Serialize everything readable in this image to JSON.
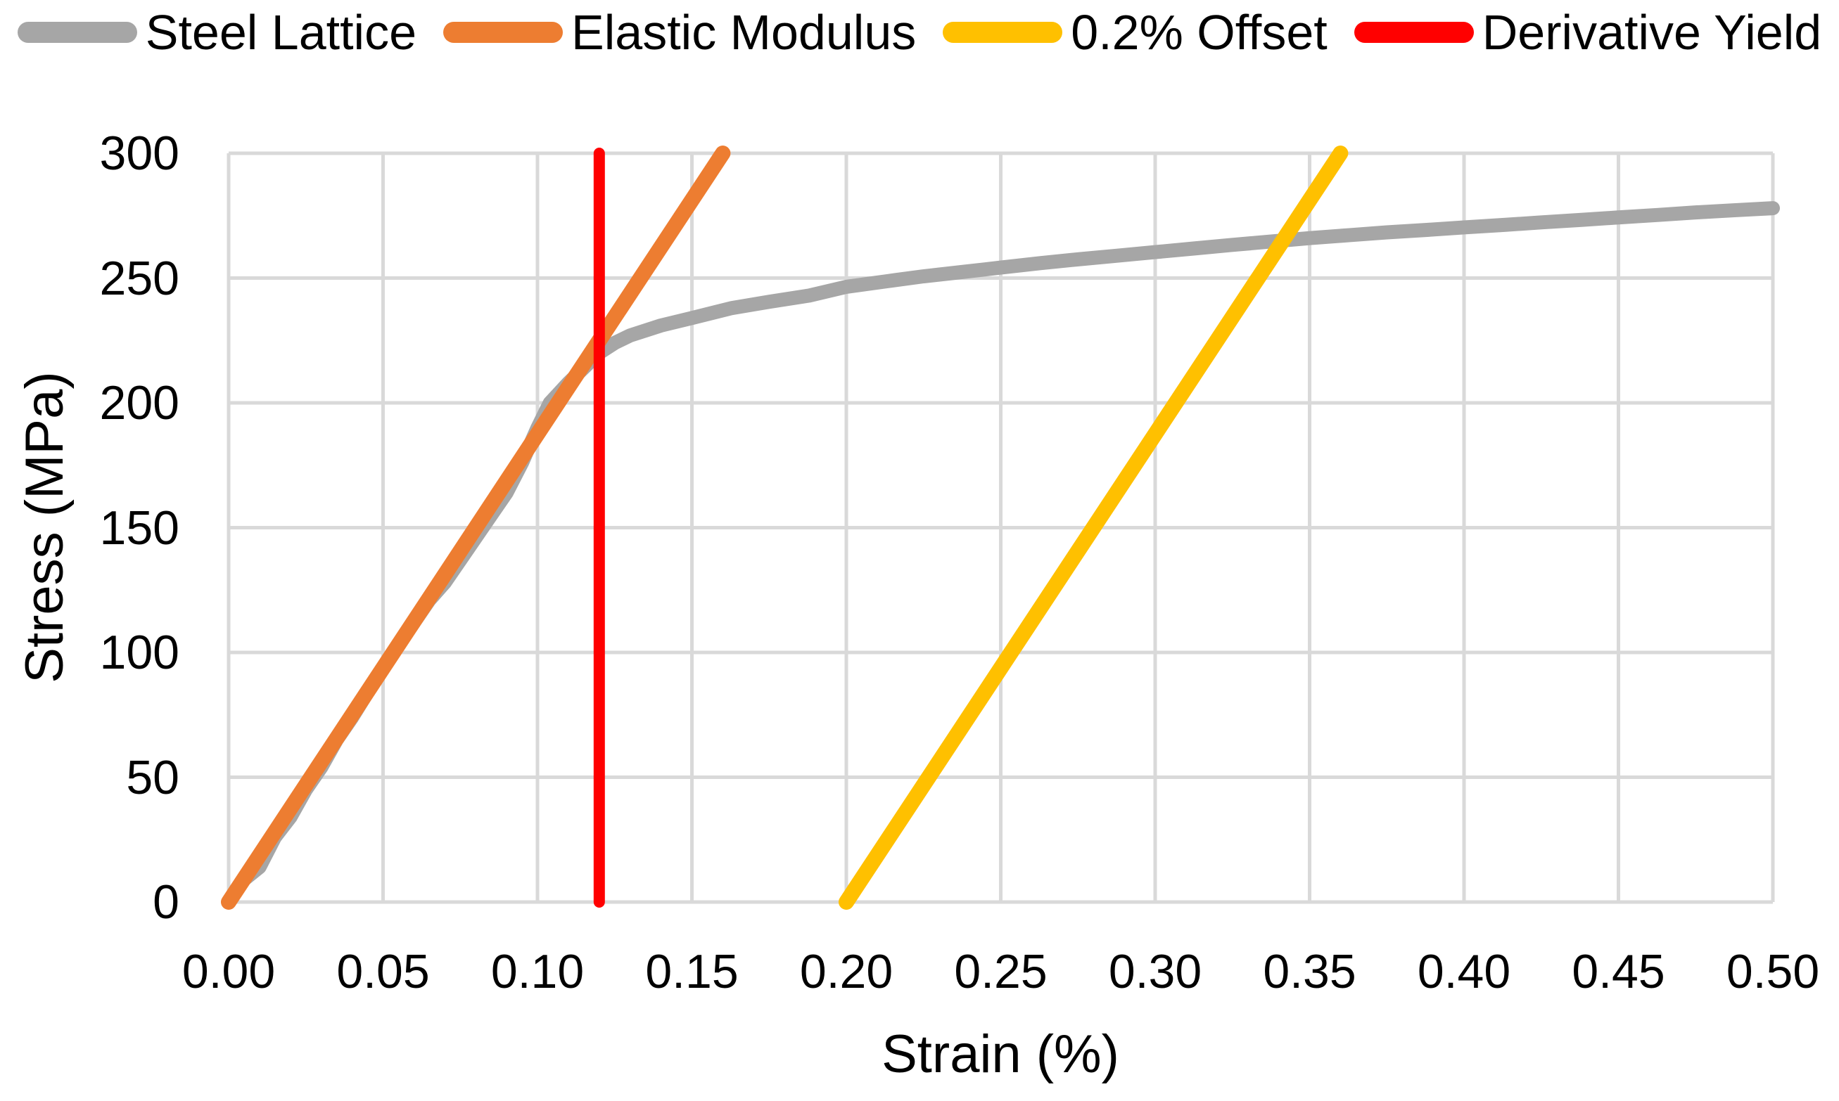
{
  "legend": {
    "items": [
      {
        "label": "Steel Lattice",
        "color": "#A6A6A6",
        "swatch_icon": "line-swatch"
      },
      {
        "label": "Elastic Modulus",
        "color": "#ED7D31",
        "swatch_icon": "line-swatch"
      },
      {
        "label": "0.2% Offset",
        "color": "#FFC000",
        "swatch_icon": "line-swatch"
      },
      {
        "label": "Derivative Yield",
        "color": "#FF0000",
        "swatch_icon": "line-swatch"
      }
    ]
  },
  "axes": {
    "x_title": "Strain (%)",
    "y_title": "Stress (MPa)",
    "x_ticks": [
      "0.00",
      "0.05",
      "0.10",
      "0.15",
      "0.20",
      "0.25",
      "0.30",
      "0.35",
      "0.40",
      "0.45",
      "0.50"
    ],
    "y_ticks": [
      "0",
      "50",
      "100",
      "150",
      "200",
      "250",
      "300"
    ]
  },
  "colors": {
    "background": "#FFFFFF",
    "gridline": "#D9D9D9",
    "text": "#000000",
    "steel_lattice": "#A6A6A6",
    "elastic_modulus": "#ED7D31",
    "offset_02": "#FFC000",
    "derivative_yield": "#FF0000"
  },
  "chart_data": {
    "type": "line",
    "title": "",
    "xlabel": "Strain (%)",
    "ylabel": "Stress (MPa)",
    "xlim": [
      0,
      0.5
    ],
    "ylim": [
      0,
      300
    ],
    "x_tick_values": [
      0.0,
      0.05,
      0.1,
      0.15,
      0.2,
      0.25,
      0.3,
      0.35,
      0.4,
      0.45,
      0.5
    ],
    "y_tick_values": [
      0,
      50,
      100,
      150,
      200,
      250,
      300
    ],
    "grid": true,
    "legend_position": "top",
    "series": [
      {
        "name": "Steel Lattice",
        "color": "#A6A6A6",
        "stroke_width": 20,
        "points": [
          [
            0.0,
            0
          ],
          [
            0.005,
            9
          ],
          [
            0.01,
            14
          ],
          [
            0.015,
            26
          ],
          [
            0.02,
            34
          ],
          [
            0.025,
            45
          ],
          [
            0.03,
            54
          ],
          [
            0.035,
            65
          ],
          [
            0.04,
            74
          ],
          [
            0.045,
            84
          ],
          [
            0.05,
            94
          ],
          [
            0.055,
            103
          ],
          [
            0.06,
            112
          ],
          [
            0.065,
            121
          ],
          [
            0.07,
            128
          ],
          [
            0.075,
            137
          ],
          [
            0.08,
            146
          ],
          [
            0.085,
            155
          ],
          [
            0.09,
            164
          ],
          [
            0.095,
            176
          ],
          [
            0.1,
            190
          ],
          [
            0.104,
            200
          ],
          [
            0.107,
            204
          ],
          [
            0.11,
            208
          ],
          [
            0.115,
            214
          ],
          [
            0.12,
            220
          ],
          [
            0.125,
            224
          ],
          [
            0.13,
            227
          ],
          [
            0.14,
            231
          ],
          [
            0.15,
            234
          ],
          [
            0.163,
            238
          ],
          [
            0.175,
            240.5
          ],
          [
            0.188,
            243
          ],
          [
            0.2,
            246.5
          ],
          [
            0.213,
            248.7
          ],
          [
            0.225,
            250.7
          ],
          [
            0.238,
            252.5
          ],
          [
            0.25,
            254.2
          ],
          [
            0.263,
            256
          ],
          [
            0.275,
            257.5
          ],
          [
            0.288,
            259
          ],
          [
            0.3,
            260.4
          ],
          [
            0.313,
            261.9
          ],
          [
            0.325,
            263.3
          ],
          [
            0.338,
            264.7
          ],
          [
            0.35,
            266
          ],
          [
            0.363,
            267.2
          ],
          [
            0.375,
            268.3
          ],
          [
            0.388,
            269.3
          ],
          [
            0.4,
            270.3
          ],
          [
            0.413,
            271.3
          ],
          [
            0.425,
            272.3
          ],
          [
            0.438,
            273.3
          ],
          [
            0.45,
            274.3
          ],
          [
            0.463,
            275.3
          ],
          [
            0.475,
            276.3
          ],
          [
            0.488,
            277.2
          ],
          [
            0.5,
            278
          ]
        ]
      },
      {
        "name": "Elastic Modulus",
        "color": "#ED7D31",
        "stroke_width": 22,
        "points": [
          [
            0,
            0
          ],
          [
            0.16,
            300
          ]
        ]
      },
      {
        "name": "0.2% Offset",
        "color": "#FFC000",
        "stroke_width": 22,
        "points": [
          [
            0.2,
            0
          ],
          [
            0.36,
            300
          ]
        ]
      },
      {
        "name": "Derivative Yield",
        "color": "#FF0000",
        "stroke_width": 16,
        "points": [
          [
            0.12,
            0
          ],
          [
            0.12,
            300
          ]
        ]
      }
    ]
  }
}
